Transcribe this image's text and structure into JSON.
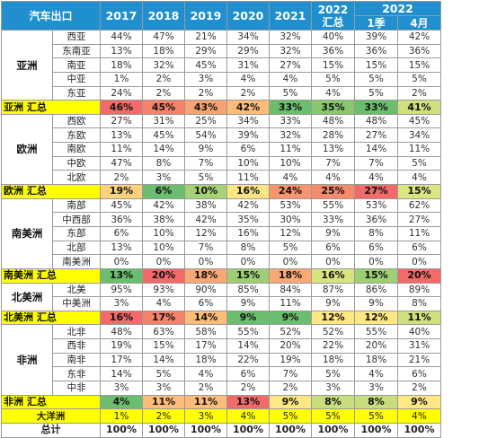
{
  "header": {
    "title": "汽车出口",
    "years": [
      "2017",
      "2018",
      "2019",
      "2020",
      "2021"
    ],
    "summary_2022": "2022 汇总",
    "group_2022": "2022",
    "q1": "1季",
    "april": "4月"
  },
  "groups": [
    {
      "region": "亚洲",
      "rows": [
        {
          "name": "西亚",
          "values": [
            "44%",
            "47%",
            "21%",
            "34%",
            "32%",
            "40%",
            "39%",
            "42%"
          ]
        },
        {
          "name": "东南亚",
          "values": [
            "13%",
            "18%",
            "29%",
            "29%",
            "32%",
            "36%",
            "36%",
            "36%"
          ]
        },
        {
          "name": "南亚",
          "values": [
            "18%",
            "32%",
            "45%",
            "31%",
            "27%",
            "15%",
            "15%",
            "15%"
          ]
        },
        {
          "name": "中亚",
          "values": [
            "1%",
            "2%",
            "3%",
            "4%",
            "4%",
            "5%",
            "5%",
            "5%"
          ]
        },
        {
          "name": "东亚",
          "values": [
            "24%",
            "2%",
            "2%",
            "2%",
            "5%",
            "4%",
            "5%",
            "2%"
          ]
        }
      ],
      "summary": {
        "label": "亚洲 汇总",
        "values": [
          "46%",
          "45%",
          "43%",
          "42%",
          "33%",
          "35%",
          "33%",
          "41%"
        ],
        "colors": [
          "#f26a6a",
          "#f5836c",
          "#f8a371",
          "#fdbd78",
          "#6cbe6f",
          "#89c76f",
          "#6cbe6f",
          "#cfe07e"
        ]
      }
    },
    {
      "region": "欧洲",
      "rows": [
        {
          "name": "西欧",
          "values": [
            "27%",
            "31%",
            "25%",
            "34%",
            "33%",
            "48%",
            "48%",
            "45%"
          ]
        },
        {
          "name": "东欧",
          "values": [
            "13%",
            "45%",
            "54%",
            "39%",
            "32%",
            "28%",
            "27%",
            "34%"
          ]
        },
        {
          "name": "南欧",
          "values": [
            "11%",
            "14%",
            "9%",
            "6%",
            "11%",
            "13%",
            "14%",
            "11%"
          ]
        },
        {
          "name": "中欧",
          "values": [
            "47%",
            "8%",
            "7%",
            "10%",
            "10%",
            "7%",
            "7%",
            "5%"
          ]
        },
        {
          "name": "北欧",
          "values": [
            "2%",
            "3%",
            "5%",
            "11%",
            "4%",
            "4%",
            "4%",
            "4%"
          ]
        }
      ],
      "summary": {
        "label": "欧洲 汇总",
        "values": [
          "19%",
          "6%",
          "10%",
          "16%",
          "24%",
          "25%",
          "27%",
          "15%"
        ],
        "colors": [
          "#fdd17e",
          "#6cbe6f",
          "#a6d276",
          "#fde583",
          "#f8956e",
          "#f58a6d",
          "#f26a6a",
          "#dbe582"
        ]
      }
    },
    {
      "region": "南美洲",
      "rows": [
        {
          "name": "南部",
          "values": [
            "45%",
            "42%",
            "38%",
            "42%",
            "53%",
            "55%",
            "53%",
            "62%"
          ]
        },
        {
          "name": "中西部",
          "values": [
            "36%",
            "38%",
            "42%",
            "35%",
            "30%",
            "33%",
            "36%",
            "27%"
          ]
        },
        {
          "name": "东部",
          "values": [
            "6%",
            "10%",
            "12%",
            "16%",
            "12%",
            "9%",
            "8%",
            "11%"
          ]
        },
        {
          "name": "北部",
          "values": [
            "13%",
            "10%",
            "7%",
            "8%",
            "5%",
            "6%",
            "6%",
            "6%"
          ]
        },
        {
          "name": "南美洲",
          "values": [
            "0%",
            "0%",
            "0%",
            "0%",
            "0%",
            "0%",
            "0%",
            "0%"
          ]
        }
      ],
      "summary": {
        "label": "南美洲 汇总",
        "values": [
          "13%",
          "20%",
          "18%",
          "15%",
          "18%",
          "16%",
          "15%",
          "20%"
        ],
        "colors": [
          "#6cbe6f",
          "#f26a6a",
          "#fba974",
          "#9fcf75",
          "#fba974",
          "#d8e380",
          "#9fcf75",
          "#f26a6a"
        ]
      }
    },
    {
      "region": "北美洲",
      "rows": [
        {
          "name": "北美",
          "values": [
            "95%",
            "93%",
            "90%",
            "85%",
            "84%",
            "87%",
            "86%",
            "89%"
          ]
        },
        {
          "name": "中美洲",
          "values": [
            "3%",
            "4%",
            "6%",
            "9%",
            "11%",
            "9%",
            "9%",
            "8%"
          ]
        }
      ],
      "summary": {
        "label": "北美洲 汇总",
        "values": [
          "16%",
          "17%",
          "14%",
          "9%",
          "9%",
          "12%",
          "12%",
          "11%"
        ],
        "colors": [
          "#f26a6a",
          "#f5836c",
          "#fdbd78",
          "#6cbe6f",
          "#6cbe6f",
          "#ffe784",
          "#ffe784",
          "#cfe07e"
        ]
      }
    },
    {
      "region": "非洲",
      "rows": [
        {
          "name": "北非",
          "values": [
            "48%",
            "63%",
            "58%",
            "55%",
            "52%",
            "52%",
            "55%",
            "40%"
          ]
        },
        {
          "name": "西非",
          "values": [
            "19%",
            "15%",
            "17%",
            "14%",
            "20%",
            "22%",
            "20%",
            "31%"
          ]
        },
        {
          "name": "南非",
          "values": [
            "17%",
            "14%",
            "18%",
            "22%",
            "19%",
            "18%",
            "18%",
            "21%"
          ]
        },
        {
          "name": "东非",
          "values": [
            "14%",
            "5%",
            "4%",
            "6%",
            "7%",
            "5%",
            "4%",
            "6%"
          ]
        },
        {
          "name": "中非",
          "values": [
            "3%",
            "3%",
            "2%",
            "2%",
            "2%",
            "3%",
            "3%",
            "2%"
          ]
        }
      ],
      "summary": {
        "label": "非洲 汇总",
        "values": [
          "4%",
          "11%",
          "11%",
          "13%",
          "9%",
          "8%",
          "8%",
          "9%"
        ],
        "colors": [
          "#6cbe6f",
          "#fdbd78",
          "#fdbd78",
          "#f26a6a",
          "#ffe784",
          "#c8de7c",
          "#c8de7c",
          "#ffe784"
        ]
      }
    }
  ],
  "oceania": {
    "label": "大洋洲",
    "values": [
      "1%",
      "2%",
      "3%",
      "4%",
      "5%",
      "5%",
      "5%",
      "4%"
    ]
  },
  "total": {
    "label": "总计",
    "values": [
      "100%",
      "100%",
      "100%",
      "100%",
      "100%",
      "100%",
      "100%",
      "100%"
    ]
  },
  "chart_data": {
    "type": "table",
    "columns": [
      "2017",
      "2018",
      "2019",
      "2020",
      "2021",
      "2022 汇总",
      "2022 1季",
      "2022 4月"
    ],
    "rows": [
      {
        "region": "亚洲",
        "sub": "西亚",
        "values": [
          44,
          47,
          21,
          34,
          32,
          40,
          39,
          42
        ]
      },
      {
        "region": "亚洲",
        "sub": "东南亚",
        "values": [
          13,
          18,
          29,
          29,
          32,
          36,
          36,
          36
        ]
      },
      {
        "region": "亚洲",
        "sub": "南亚",
        "values": [
          18,
          32,
          45,
          31,
          27,
          15,
          15,
          15
        ]
      },
      {
        "region": "亚洲",
        "sub": "中亚",
        "values": [
          1,
          2,
          3,
          4,
          4,
          5,
          5,
          5
        ]
      },
      {
        "region": "亚洲",
        "sub": "东亚",
        "values": [
          24,
          2,
          2,
          2,
          5,
          4,
          5,
          2
        ]
      },
      {
        "region": "亚洲 汇总",
        "values": [
          46,
          45,
          43,
          42,
          33,
          35,
          33,
          41
        ]
      },
      {
        "region": "欧洲",
        "sub": "西欧",
        "values": [
          27,
          31,
          25,
          34,
          33,
          48,
          48,
          45
        ]
      },
      {
        "region": "欧洲",
        "sub": "东欧",
        "values": [
          13,
          45,
          54,
          39,
          32,
          28,
          27,
          34
        ]
      },
      {
        "region": "欧洲",
        "sub": "南欧",
        "values": [
          11,
          14,
          9,
          6,
          11,
          13,
          14,
          11
        ]
      },
      {
        "region": "欧洲",
        "sub": "中欧",
        "values": [
          47,
          8,
          7,
          10,
          10,
          7,
          7,
          5
        ]
      },
      {
        "region": "欧洲",
        "sub": "北欧",
        "values": [
          2,
          3,
          5,
          11,
          4,
          4,
          4,
          4
        ]
      },
      {
        "region": "欧洲 汇总",
        "values": [
          19,
          6,
          10,
          16,
          24,
          25,
          27,
          15
        ]
      },
      {
        "region": "南美洲",
        "sub": "南部",
        "values": [
          45,
          42,
          38,
          42,
          53,
          55,
          53,
          62
        ]
      },
      {
        "region": "南美洲",
        "sub": "中西部",
        "values": [
          36,
          38,
          42,
          35,
          30,
          33,
          36,
          27
        ]
      },
      {
        "region": "南美洲",
        "sub": "东部",
        "values": [
          6,
          10,
          12,
          16,
          12,
          9,
          8,
          11
        ]
      },
      {
        "region": "南美洲",
        "sub": "北部",
        "values": [
          13,
          10,
          7,
          8,
          5,
          6,
          6,
          6
        ]
      },
      {
        "region": "南美洲",
        "sub": "南美洲",
        "values": [
          0,
          0,
          0,
          0,
          0,
          0,
          0,
          0
        ]
      },
      {
        "region": "南美洲 汇总",
        "values": [
          13,
          20,
          18,
          15,
          18,
          16,
          15,
          20
        ]
      },
      {
        "region": "北美洲",
        "sub": "北美",
        "values": [
          95,
          93,
          90,
          85,
          84,
          87,
          86,
          89
        ]
      },
      {
        "region": "北美洲",
        "sub": "中美洲",
        "values": [
          3,
          4,
          6,
          9,
          11,
          9,
          9,
          8
        ]
      },
      {
        "region": "北美洲 汇总",
        "values": [
          16,
          17,
          14,
          9,
          9,
          12,
          12,
          11
        ]
      },
      {
        "region": "非洲",
        "sub": "北非",
        "values": [
          48,
          63,
          58,
          55,
          52,
          52,
          55,
          40
        ]
      },
      {
        "region": "非洲",
        "sub": "西非",
        "values": [
          19,
          15,
          17,
          14,
          20,
          22,
          20,
          31
        ]
      },
      {
        "region": "非洲",
        "sub": "南非",
        "values": [
          17,
          14,
          18,
          22,
          19,
          18,
          18,
          21
        ]
      },
      {
        "region": "非洲",
        "sub": "东非",
        "values": [
          14,
          5,
          4,
          6,
          7,
          5,
          4,
          6
        ]
      },
      {
        "region": "非洲",
        "sub": "中非",
        "values": [
          3,
          3,
          2,
          2,
          2,
          3,
          3,
          2
        ]
      },
      {
        "region": "非洲 汇总",
        "values": [
          4,
          11,
          11,
          13,
          9,
          8,
          8,
          9
        ]
      },
      {
        "region": "大洋洲",
        "values": [
          1,
          2,
          3,
          4,
          5,
          5,
          5,
          4
        ]
      },
      {
        "region": "总计",
        "values": [
          100,
          100,
          100,
          100,
          100,
          100,
          100,
          100
        ]
      }
    ]
  }
}
